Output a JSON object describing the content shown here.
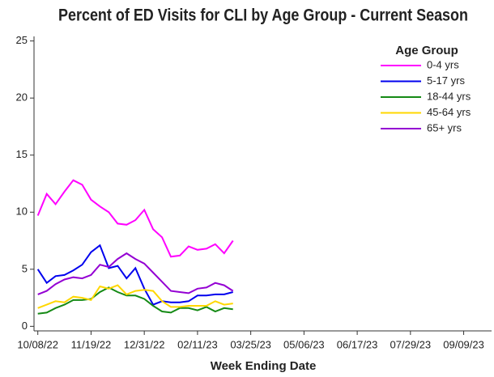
{
  "chart_data": {
    "type": "line",
    "title": "Percent of ED Visits for CLI by Age Group - Current Season",
    "x_label": "Week Ending Date",
    "legend_title": "Age Group",
    "legend_position": "upper right",
    "grid": false,
    "x": [
      "10/08/22",
      "10/15/22",
      "10/22/22",
      "10/29/22",
      "11/05/22",
      "11/12/22",
      "11/19/22",
      "11/26/22",
      "12/03/22",
      "12/10/22",
      "12/17/22",
      "12/24/22",
      "12/31/22",
      "01/07/23",
      "01/14/23",
      "01/21/23",
      "01/28/23",
      "02/04/23",
      "02/11/23",
      "02/18/23",
      "02/25/23",
      "03/04/23",
      "03/11/23"
    ],
    "xlim": [
      "10/05/22",
      "10/01/23"
    ],
    "xticks": [
      "10/08/22",
      "11/19/22",
      "12/31/22",
      "02/11/23",
      "03/25/23",
      "05/06/23",
      "06/17/23",
      "07/29/23",
      "09/09/23"
    ],
    "ylim": [
      -0.4,
      25.4
    ],
    "yticks": [
      0,
      5,
      10,
      15,
      20,
      25
    ],
    "series": [
      {
        "name": "0-4 yrs",
        "color": "#ff00ff",
        "values": [
          9.7,
          11.6,
          10.7,
          11.8,
          12.8,
          12.4,
          11.1,
          10.5,
          10.0,
          9.0,
          8.9,
          9.3,
          10.2,
          8.5,
          7.8,
          6.1,
          6.2,
          7.0,
          6.7,
          6.8,
          7.2,
          6.4,
          7.5
        ]
      },
      {
        "name": "5-17 yrs",
        "color": "#0000ee",
        "values": [
          5.0,
          3.8,
          4.4,
          4.5,
          4.9,
          5.4,
          6.5,
          7.1,
          5.1,
          5.3,
          4.2,
          5.1,
          3.3,
          1.9,
          2.2,
          2.1,
          2.1,
          2.2,
          2.7,
          2.7,
          2.8,
          2.8,
          3.0
        ]
      },
      {
        "name": "18-44 yrs",
        "color": "#158a15",
        "values": [
          1.1,
          1.2,
          1.6,
          1.9,
          2.3,
          2.3,
          2.4,
          3.0,
          3.4,
          3.0,
          2.7,
          2.7,
          2.4,
          1.8,
          1.3,
          1.2,
          1.6,
          1.6,
          1.4,
          1.7,
          1.3,
          1.6,
          1.5
        ]
      },
      {
        "name": "45-64 yrs",
        "color": "#ffd700",
        "values": [
          1.6,
          1.9,
          2.2,
          2.1,
          2.6,
          2.5,
          2.3,
          3.5,
          3.3,
          3.6,
          2.8,
          3.1,
          3.2,
          3.1,
          2.2,
          1.7,
          1.7,
          1.8,
          1.8,
          1.8,
          2.2,
          1.9,
          2.0
        ]
      },
      {
        "name": "65+ yrs",
        "color": "#9400d3",
        "values": [
          2.8,
          3.1,
          3.7,
          4.1,
          4.3,
          4.2,
          4.5,
          5.4,
          5.2,
          5.9,
          6.4,
          5.9,
          5.5,
          4.7,
          3.9,
          3.1,
          3.0,
          2.9,
          3.3,
          3.4,
          3.8,
          3.6,
          3.1
        ]
      }
    ]
  }
}
